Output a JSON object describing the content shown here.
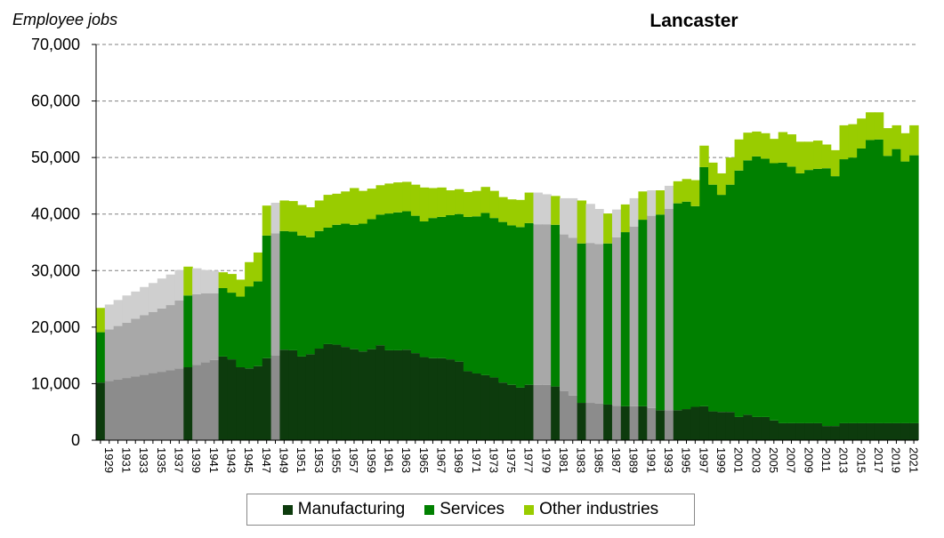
{
  "chart_data": {
    "type": "bar",
    "stacked": true,
    "title": "Lancaster",
    "ylabel": "Employee jobs",
    "xlabel": "",
    "ylim": [
      0,
      70000
    ],
    "yticks": [
      "0",
      "10,000",
      "20,000",
      "30,000",
      "40,000",
      "50,000",
      "60,000",
      "70,000"
    ],
    "grid": "horizontal dashed",
    "legend_position": "bottom",
    "categories": [
      "1929",
      "1930",
      "1931",
      "1932",
      "1933",
      "1934",
      "1935",
      "1936",
      "1937",
      "1938",
      "1939",
      "1940",
      "1941",
      "1942",
      "1943",
      "1944",
      "1945",
      "1946",
      "1947",
      "1948",
      "1949",
      "1950",
      "1951",
      "1952",
      "1953",
      "1954",
      "1955",
      "1956",
      "1957",
      "1958",
      "1959",
      "1960",
      "1961",
      "1962",
      "1963",
      "1964",
      "1965",
      "1966",
      "1967",
      "1968",
      "1969",
      "1970",
      "1971",
      "1972",
      "1973",
      "1974",
      "1975",
      "1976",
      "1977",
      "1978",
      "1979",
      "1980",
      "1981",
      "1982",
      "1983",
      "1984",
      "1985",
      "1986",
      "1987",
      "1988",
      "1989",
      "1990",
      "1991",
      "1992",
      "1993",
      "1994",
      "1995",
      "1996",
      "1997",
      "1998",
      "1999",
      "2000",
      "2001",
      "2002",
      "2003",
      "2004",
      "2005",
      "2006",
      "2007",
      "2008",
      "2009",
      "2010",
      "2011",
      "2012",
      "2013",
      "2014",
      "2015",
      "2016",
      "2017",
      "2018",
      "2019",
      "2020",
      "2021",
      "2022"
    ],
    "estimated": [
      false,
      true,
      true,
      true,
      true,
      true,
      true,
      true,
      true,
      true,
      false,
      true,
      true,
      true,
      false,
      false,
      false,
      false,
      false,
      false,
      true,
      false,
      false,
      false,
      false,
      false,
      false,
      false,
      false,
      false,
      false,
      false,
      false,
      false,
      false,
      false,
      false,
      false,
      false,
      false,
      false,
      false,
      false,
      false,
      false,
      false,
      false,
      false,
      false,
      false,
      true,
      true,
      false,
      true,
      true,
      false,
      true,
      true,
      false,
      true,
      false,
      true,
      false,
      true,
      false,
      true,
      false,
      false,
      false,
      false,
      false,
      false,
      false,
      false,
      false,
      false,
      false,
      false,
      false,
      false,
      false,
      false,
      false,
      false,
      false,
      false,
      false,
      false,
      false,
      false,
      false,
      false,
      false,
      false
    ],
    "series": [
      {
        "name": "Manufacturing",
        "color": "#0d3b0d",
        "est_color": "#8c8c8c",
        "values": [
          10200,
          10500,
          10700,
          11000,
          11300,
          11600,
          11900,
          12100,
          12400,
          12700,
          12900,
          13300,
          13800,
          14200,
          14800,
          14300,
          12900,
          12700,
          13100,
          14500,
          15000,
          16000,
          15900,
          14800,
          15200,
          16200,
          17000,
          16900,
          16500,
          16100,
          15700,
          16100,
          16800,
          15900,
          15900,
          16000,
          15400,
          14700,
          14500,
          14500,
          14300,
          13900,
          12200,
          11800,
          11500,
          11100,
          10200,
          9800,
          9300,
          9800,
          9800,
          9800,
          9500,
          8700,
          7900,
          6600,
          6600,
          6500,
          6300,
          6100,
          6000,
          6000,
          6000,
          5700,
          5300,
          5300,
          5300,
          5500,
          5900,
          6000,
          5100,
          5000,
          5000,
          4100,
          4500,
          4100,
          4100,
          3500,
          3000,
          3000,
          3000,
          3000,
          3000,
          2500,
          2500,
          3000,
          3000,
          3000,
          3000,
          3000,
          3000,
          3000,
          3000,
          3000
        ]
      },
      {
        "name": "Services",
        "color": "#008000",
        "est_color": "#a8a8a8",
        "values": [
          8900,
          9100,
          9500,
          9800,
          10200,
          10500,
          10800,
          11200,
          11500,
          12000,
          12700,
          12500,
          12200,
          11800,
          12100,
          11800,
          12500,
          14500,
          15000,
          21700,
          21600,
          21000,
          21000,
          21400,
          20700,
          20800,
          20600,
          21200,
          21800,
          22000,
          22600,
          23000,
          23100,
          24200,
          24400,
          24500,
          24300,
          24000,
          24800,
          25000,
          25500,
          26100,
          27300,
          27800,
          28700,
          28200,
          28400,
          28200,
          28400,
          28600,
          28400,
          28400,
          28600,
          27700,
          27900,
          28200,
          28300,
          28200,
          28500,
          29800,
          30800,
          31800,
          33000,
          34000,
          34600,
          35600,
          36600,
          36700,
          35500,
          42300,
          40100,
          38400,
          40200,
          43600,
          45000,
          46100,
          45700,
          45500,
          46100,
          45400,
          44200,
          44800,
          45000,
          45600,
          44200,
          46700,
          47000,
          48600,
          50100,
          50200,
          47300,
          48500,
          46300,
          47400
        ]
      },
      {
        "name": "Other industries",
        "color": "#99cc00",
        "est_color": "#cfcfcf",
        "values": [
          4300,
          4400,
          4600,
          4800,
          4800,
          5000,
          5100,
          5300,
          5400,
          5400,
          5100,
          4600,
          4100,
          4000,
          2800,
          3300,
          3000,
          4300,
          5100,
          5300,
          5400,
          5400,
          5400,
          5400,
          5300,
          5400,
          5800,
          5500,
          5700,
          6500,
          5800,
          5400,
          5200,
          5300,
          5300,
          5200,
          5500,
          6000,
          5300,
          5200,
          4400,
          4400,
          4400,
          4500,
          4600,
          4800,
          4400,
          4600,
          4800,
          5400,
          5600,
          5300,
          5100,
          6400,
          7000,
          7600,
          6900,
          6200,
          5300,
          4900,
          4900,
          5000,
          5000,
          4500,
          4300,
          4100,
          3900,
          4000,
          4600,
          3800,
          3900,
          3800,
          4800,
          5500,
          4900,
          4400,
          4500,
          4300,
          5400,
          5700,
          5600,
          5000,
          5000,
          4200,
          4600,
          6000,
          5900,
          5300,
          4900,
          4800,
          4900,
          4200,
          5000,
          5300
        ]
      }
    ]
  },
  "legend": [
    {
      "label": "Manufacturing",
      "color": "#0d3b0d"
    },
    {
      "label": "Services",
      "color": "#008000"
    },
    {
      "label": "Other industries",
      "color": "#99cc00"
    }
  ]
}
